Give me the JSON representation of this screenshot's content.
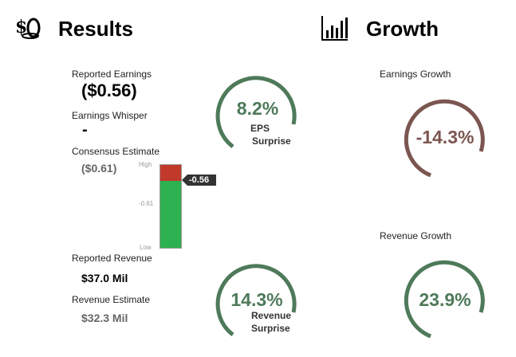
{
  "results": {
    "title": "Results",
    "icon": "money-icon",
    "reported_earnings": {
      "label": "Reported Earnings",
      "value": "($0.56)"
    },
    "earnings_whisper": {
      "label": "Earnings Whisper",
      "value": "-"
    },
    "consensus_estimate": {
      "label": "Consensus Estimate",
      "value": "($0.61)"
    },
    "reported_revenue": {
      "label": "Reported Revenue",
      "value": "$37.0 Mil"
    },
    "revenue_estimate": {
      "label": "Revenue Estimate",
      "value": "$32.3 Mil"
    }
  },
  "eps_surprise": {
    "value": "8.2%",
    "line1": "EPS",
    "line2": "Surprise",
    "color": "#4e7a5a"
  },
  "revenue_surprise": {
    "value": "14.3%",
    "line1": "Revenue",
    "line2": "Surprise",
    "color": "#4e7a5a"
  },
  "gauge": {
    "high_label": "High",
    "mid_label": "-0.61",
    "low_label": "Low",
    "marker_label": "-0.56",
    "marker_fraction_from_top": 0.19,
    "red_color": "#c0392b",
    "green_color": "#2db04f"
  },
  "growth": {
    "title": "Growth",
    "icon": "bar-chart-icon",
    "earnings": {
      "label": "Earnings Growth",
      "value": "-14.3%",
      "color": "#7b5650"
    },
    "revenue": {
      "label": "Revenue Growth",
      "value": "23.9%",
      "color": "#4e7a5a"
    }
  }
}
